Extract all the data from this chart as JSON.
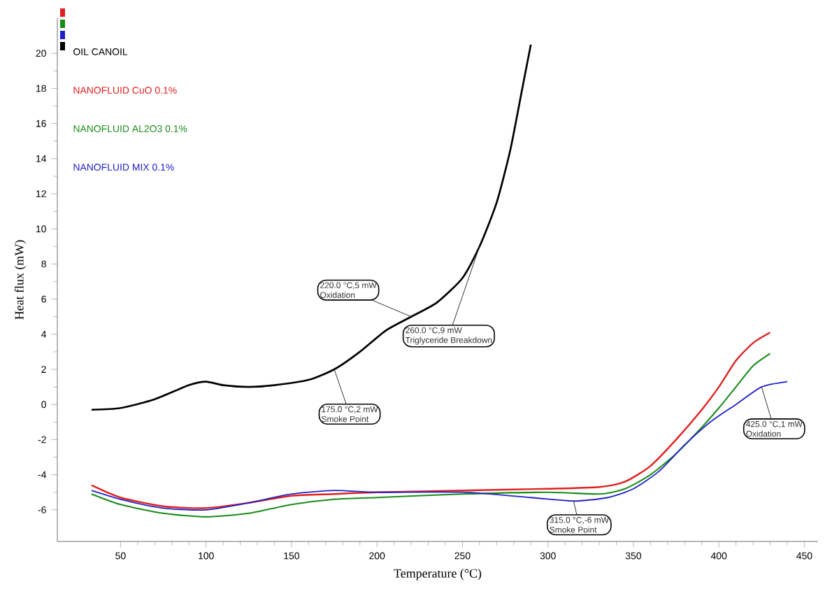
{
  "chart_data": {
    "type": "line",
    "xlabel": "Temperature (°C)",
    "ylabel": "Heat flux (mW)",
    "xlim": [
      13,
      458
    ],
    "ylim": [
      -7.8,
      22
    ],
    "xticks": [
      50,
      100,
      150,
      200,
      250,
      300,
      350,
      400,
      450
    ],
    "yticks": [
      -6,
      -4,
      -2,
      0,
      2,
      4,
      6,
      8,
      10,
      12,
      14,
      16,
      18,
      20
    ],
    "legend": "top left",
    "grid": false,
    "series": [
      {
        "name": "OIL CANOIL",
        "color": "#000000",
        "x": [
          33,
          50,
          70,
          90,
          100,
          110,
          125,
          140,
          160,
          175,
          190,
          205,
          220,
          235,
          250,
          260,
          270,
          278,
          285,
          290
        ],
        "values": [
          -0.3,
          -0.2,
          0.3,
          1.1,
          1.3,
          1.1,
          1.0,
          1.1,
          1.4,
          2.0,
          3.0,
          4.2,
          5.0,
          5.8,
          7.2,
          9.0,
          11.5,
          14.5,
          18.0,
          20.5
        ]
      },
      {
        "name": "NANOFLUID CuO 0.1%",
        "color": "#e02020",
        "x": [
          33,
          50,
          75,
          100,
          125,
          150,
          175,
          200,
          250,
          300,
          330,
          345,
          360,
          375,
          390,
          400,
          410,
          420,
          430
        ],
        "values": [
          -4.6,
          -5.3,
          -5.8,
          -5.9,
          -5.6,
          -5.2,
          -5.1,
          -5.0,
          -4.9,
          -4.8,
          -4.7,
          -4.4,
          -3.5,
          -2.0,
          -0.3,
          1.0,
          2.5,
          3.5,
          4.1
        ]
      },
      {
        "name": "NANOFLUID AL2O3 0.1%",
        "color": "#1a8c1a",
        "x": [
          33,
          50,
          75,
          100,
          125,
          150,
          175,
          200,
          250,
          300,
          330,
          345,
          360,
          375,
          390,
          400,
          410,
          420,
          430
        ],
        "values": [
          -5.1,
          -5.7,
          -6.2,
          -6.4,
          -6.2,
          -5.7,
          -5.4,
          -5.3,
          -5.1,
          -5.0,
          -5.1,
          -4.8,
          -4.0,
          -2.8,
          -1.3,
          -0.2,
          1.0,
          2.2,
          2.9
        ]
      },
      {
        "name": "NANOFLUID MIX 0.1%",
        "color": "#2020c8",
        "x": [
          33,
          50,
          75,
          100,
          125,
          150,
          175,
          200,
          250,
          290,
          315,
          335,
          350,
          365,
          380,
          395,
          410,
          425,
          440
        ],
        "values": [
          -4.9,
          -5.4,
          -5.9,
          -6.0,
          -5.6,
          -5.1,
          -4.9,
          -5.0,
          -5.0,
          -5.3,
          -5.5,
          -5.3,
          -4.8,
          -3.8,
          -2.3,
          -1.0,
          0.0,
          1.0,
          1.3
        ]
      }
    ],
    "annotations": [
      {
        "text": "220.0 °C,5 mW",
        "x": 220,
        "y": 5
      },
      {
        "text": "Oxidation",
        "x": 220,
        "y": 5
      },
      {
        "text": "260.0 °C,9 mW",
        "x": 260,
        "y": 9
      },
      {
        "text": "Triglyceride Breakdown",
        "x": 260,
        "y": 9
      },
      {
        "text": "175.0 °C,2 mW",
        "x": 175,
        "y": 2
      },
      {
        "text": "Smoke Point",
        "x": 175,
        "y": 2
      },
      {
        "text": "315.0 °C,-6 mW",
        "x": 315,
        "y": -5.5
      },
      {
        "text": "Smoke Point",
        "x": 315,
        "y": -5.5
      },
      {
        "text": "425.0 °C,1 mW",
        "x": 425,
        "y": 1
      },
      {
        "text": "Oxidation",
        "x": 425,
        "y": 1
      }
    ]
  }
}
